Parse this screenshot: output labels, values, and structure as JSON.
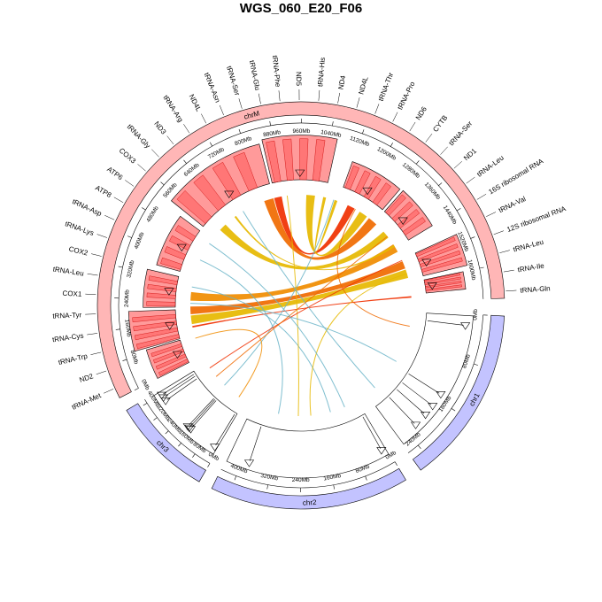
{
  "chart_data": {
    "type": "circos",
    "title": "WGS_060_E20_F06",
    "colors": {
      "chrM": "#ffb6b6",
      "nuclear": "#c3c3ff",
      "hist_fill": "#ff9a9a",
      "hist_stroke": "#cc0000",
      "link_palette": [
        "#f03000",
        "#f06a00",
        "#f08c00",
        "#e6b800",
        "#6ab4c8"
      ]
    },
    "chromosomes": [
      {
        "name": "chrM",
        "color": "#ffb6b6"
      },
      {
        "name": "chr1",
        "color": "#c3c3ff"
      },
      {
        "name": "chr2",
        "color": "#c3c3ff"
      },
      {
        "name": "chr3",
        "color": "#c3c3ff"
      }
    ],
    "chrM_ticks": [
      "0Mb",
      "80Mb",
      "160Mb",
      "240Mb",
      "320Mb",
      "400Mb",
      "480Mb",
      "560Mb",
      "640Mb",
      "720Mb",
      "800Mb",
      "880Mb",
      "960Mb",
      "1040Mb",
      "1120Mb",
      "1200Mb",
      "1280Mb",
      "1360Mb",
      "1440Mb",
      "1520Mb",
      "1600Mb"
    ],
    "chr1_ticks": [
      "0Mb",
      "80Mb",
      "160Mb",
      "240Mb"
    ],
    "chr2_ticks": [
      "0Mb",
      "80Mb",
      "160Mb",
      "240Mb",
      "320Mb",
      "400Mb"
    ],
    "chr3_ticks": [
      "0Mb",
      "80Mb",
      "160Mb",
      "240Mb",
      "320Mb",
      "400Mb"
    ],
    "genes": [
      "tRNA-Met",
      "ND2",
      "tRNA-Trp",
      "tRNA-Cys",
      "tRNA-Tyr",
      "COX1",
      "tRNA-Leu",
      "COX2",
      "tRNA-Lys",
      "tRNA-Asp",
      "ATP8",
      "ATP6",
      "COX3",
      "tRNA-Gly",
      "ND3",
      "tRNA-Arg",
      "ND4L",
      "tRNA-Asn",
      "tRNA-Ser",
      "tRNA-Glu",
      "tRNA-Phe",
      "ND5",
      "tRNA-His",
      "ND4",
      "ND4L",
      "tRNA-Thr",
      "tRNA-Pro",
      "ND6",
      "CYTB",
      "tRNA-Ser",
      "ND1",
      "tRNA-Leu",
      "16S ribosomal RNA",
      "tRNA-Val",
      "12S ribosomal RNA",
      "tRNA-Leu",
      "tRNA-Ile",
      "tRNA-Gln"
    ],
    "histogram_blocks_chrM": [
      {
        "start": 0,
        "end": 90
      },
      {
        "start": 95,
        "end": 205
      },
      {
        "start": 215,
        "end": 330
      },
      {
        "start": 350,
        "end": 520
      },
      {
        "start": 540,
        "end": 840
      },
      {
        "start": 850,
        "end": 1060
      },
      {
        "start": 1120,
        "end": 1290
      },
      {
        "start": 1300,
        "end": 1440
      },
      {
        "start": 1495,
        "end": 1585
      },
      {
        "start": 1600,
        "end": 1650
      }
    ],
    "links": [
      {
        "from": 860,
        "to": 1180,
        "color": "#f03000",
        "width": 40
      },
      {
        "from": 820,
        "to": 1290,
        "color": "#f06a00",
        "width": 50
      },
      {
        "from": 1000,
        "to": 1240,
        "color": "#e6b800",
        "width": 45
      },
      {
        "from": 590,
        "to": 1370,
        "color": "#e6b800",
        "width": 40
      },
      {
        "from": 260,
        "to": 1440,
        "color": "#f08c00",
        "width": 45
      },
      {
        "from": 160,
        "to": 1560,
        "color": "#e6b800",
        "width": 45
      },
      {
        "from": 200,
        "to": 1520,
        "color": "#f06a00",
        "width": 40
      },
      {
        "from": 1660,
        "to": 130,
        "color": "#f03000",
        "width": 8
      },
      {
        "from": 1060,
        "to": 1110,
        "color": "#e6b800",
        "width": 15
      },
      {
        "from": 660,
        "to": 1430,
        "color": "#e6b800",
        "width": 10
      },
      {
        "from": 1200,
        "to": "chr1:40",
        "color": "#f06a00",
        "width": 2
      },
      {
        "from": 300,
        "to": "chr2:120",
        "color": "#6ab4c8",
        "width": 2
      },
      {
        "from": 420,
        "to": "chr2:330",
        "color": "#6ab4c8",
        "width": 2
      },
      {
        "from": 1100,
        "to": "chr3:200",
        "color": "#6ab4c8",
        "width": 2
      },
      {
        "from": 900,
        "to": "chr2:250",
        "color": "#e6b800",
        "width": 2
      },
      {
        "from": 230,
        "to": "chr1:140",
        "color": "#6ab4c8",
        "width": 2
      },
      {
        "from": 80,
        "to": "chr3:60",
        "color": "#f08c00",
        "width": 2
      },
      {
        "from": 1500,
        "to": "chr3:370",
        "color": "#f03000",
        "width": 2
      },
      {
        "from": 1560,
        "to": "chr2:200",
        "color": "#e6b800",
        "width": 2
      },
      {
        "from": 700,
        "to": "chr1:230",
        "color": "#6ab4c8",
        "width": 2
      },
      {
        "from": 1380,
        "to": "chr3:290",
        "color": "#f06a00",
        "width": 2
      },
      {
        "from": 500,
        "to": "chr2:60",
        "color": "#6ab4c8",
        "width": 2
      }
    ]
  }
}
